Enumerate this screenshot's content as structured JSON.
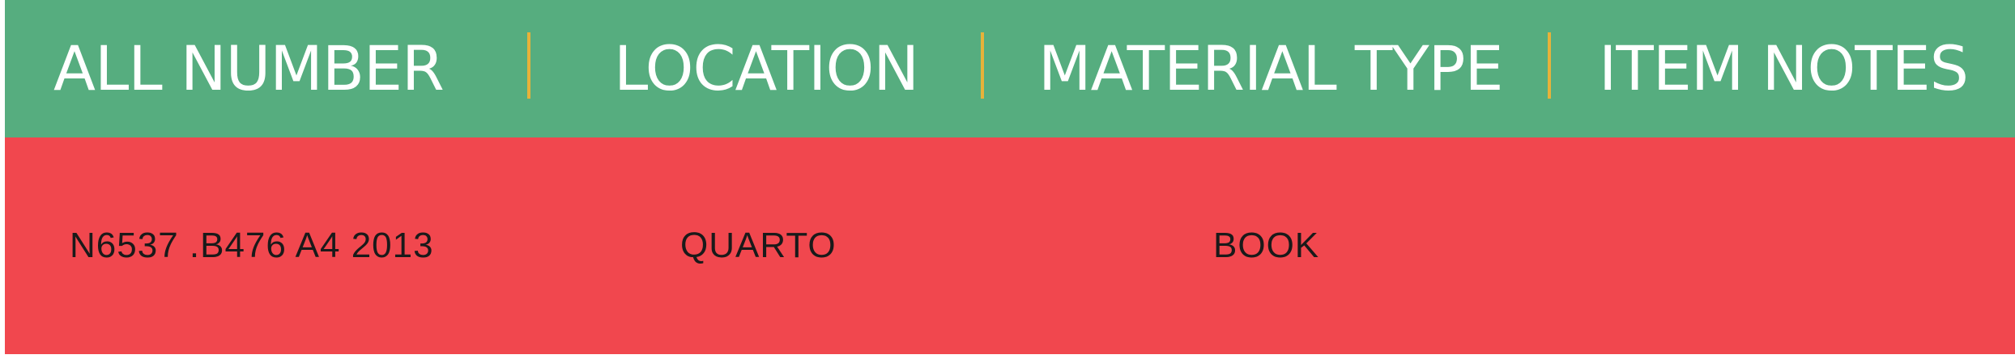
{
  "table": {
    "headers": [
      "ALL NUMBER",
      "LOCATION",
      "MATERIAL TYPE",
      "ITEM NOTES"
    ],
    "rows": [
      [
        "N6537 .B476 A4 2013",
        "QUARTO",
        "BOOK",
        ""
      ]
    ]
  },
  "colors": {
    "header_background": "#56ad7f",
    "row_background": "#f1474e",
    "separator": "#e7b23a",
    "header_text": "#ffffff",
    "row_text": "#1a1a1a"
  }
}
